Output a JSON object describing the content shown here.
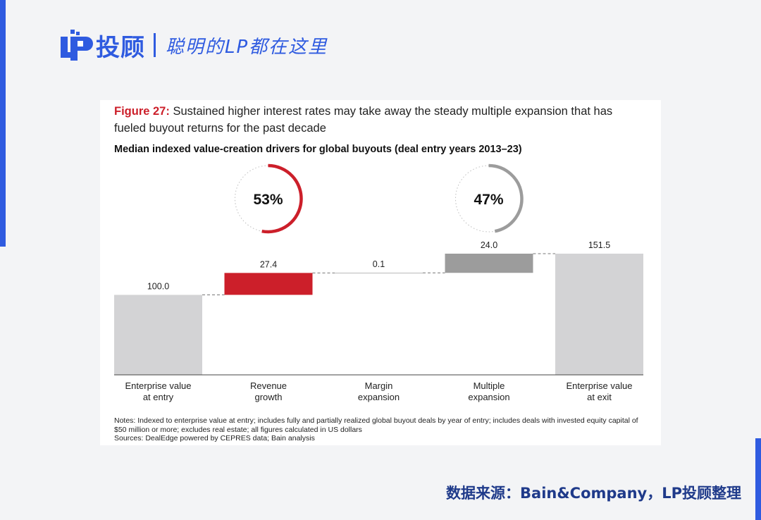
{
  "brand": {
    "name": "投顾",
    "slogan": "聪明的LP都在这里",
    "color": "#2f5be0"
  },
  "figure": {
    "number": "Figure 27:",
    "title": "Sustained higher interest rates may take away the steady multiple expansion that has fueled buyout returns for the past decade",
    "subtitle": "Median indexed value-creation drivers for global buyouts (deal entry years 2013–23)"
  },
  "chart_data": {
    "type": "bar",
    "subtype": "waterfall",
    "categories": [
      "Enterprise value at entry",
      "Revenue growth",
      "Margin expansion",
      "Multiple expansion",
      "Enterprise value at exit"
    ],
    "category_lines": [
      [
        "Enterprise value",
        "at entry"
      ],
      [
        "Revenue",
        "growth"
      ],
      [
        "Margin",
        "expansion"
      ],
      [
        "Multiple",
        "expansion"
      ],
      [
        "Enterprise value",
        "at exit"
      ]
    ],
    "values": [
      100.0,
      27.4,
      0.1,
      24.0,
      151.5
    ],
    "value_labels": [
      "100.0",
      "27.4",
      "0.1",
      "24.0",
      "151.5"
    ],
    "bar_kind": [
      "total",
      "delta",
      "delta",
      "delta",
      "total"
    ],
    "colors": [
      "#d3d3d5",
      "#cc1f2a",
      "#a6a6a6",
      "#9c9c9c",
      "#d3d3d5"
    ],
    "ylim": [
      0,
      151.5
    ],
    "grid": false,
    "gauges": [
      {
        "label": "53%",
        "value": 53,
        "color": "#cc1f2a",
        "position_bar": 1
      },
      {
        "label": "47%",
        "value": 47,
        "color": "#9c9c9c",
        "position_bar": 3
      }
    ]
  },
  "notes": {
    "line1": "Notes: Indexed to enterprise value at entry; includes fully and partially realized global buyout deals by year of entry; includes deals with invested equity capital of $50 million or more; excludes real estate; all figures calculated in US dollars",
    "line2": "Sources: DealEdge powered by CEPRES data; Bain analysis"
  },
  "footer": {
    "source": "数据来源：Bain&Company，LP投顾整理"
  }
}
